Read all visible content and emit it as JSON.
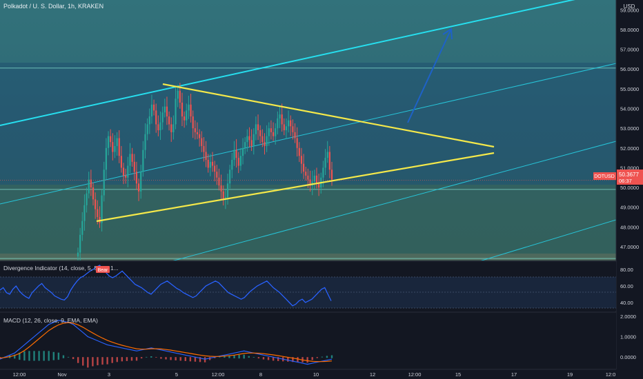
{
  "header": {
    "symbol_title": "Polkadot / U. S. Dollar, 1h, KRAKEN",
    "currency": "USD"
  },
  "colors": {
    "bg": "#131722",
    "candle_up": "#26a69a",
    "candle_down": "#ef5350",
    "channel_line": "#26c6da",
    "triangle": "#f5e94a",
    "arrow": "#1e62c8",
    "price_tag": "#ef5350",
    "rsi_line": "#2962ff",
    "macd_line": "#2962ff",
    "signal_line": "#ff6d00"
  },
  "chart_data": [
    {
      "type": "candlestick",
      "name": "price",
      "ylim": [
        46.3,
        59.5
      ],
      "yticks": [
        47,
        48,
        49,
        50,
        51,
        52,
        53,
        54,
        55,
        56,
        57,
        58,
        59
      ],
      "ytick_labels": [
        "47.0000",
        "48.0000",
        "49.0000",
        "50.0000",
        "51.0000",
        "52.0000",
        "53.0000",
        "54.0000",
        "55.0000",
        "56.0000",
        "57.0000",
        "58.0000",
        "59.0000"
      ],
      "last_price": 50.3677,
      "last_price_label": "50.3677",
      "symbol_tag": "DOTUSD",
      "countdown": "06:37",
      "horizontal_levels": [
        56.05,
        49.9,
        46.4
      ],
      "closes": [
        46.7,
        47.6,
        48.3,
        49.1,
        49.7,
        50.4,
        50.0,
        49.4,
        48.9,
        48.5,
        48.2,
        49.6,
        50.9,
        52.0,
        52.6,
        52.3,
        51.8,
        52.1,
        52.5,
        51.6,
        51.0,
        50.6,
        50.5,
        51.1,
        51.7,
        51.3,
        50.8,
        50.2,
        49.8,
        50.8,
        51.9,
        52.7,
        53.2,
        53.6,
        54.2,
        53.9,
        53.2,
        52.9,
        53.3,
        53.8,
        54.1,
        53.6,
        53.2,
        52.8,
        53.2,
        54.5,
        54.9,
        54.3,
        53.6,
        53.4,
        53.9,
        54.2,
        53.6,
        53.0,
        52.8,
        52.7,
        52.5,
        52.1,
        51.8,
        51.4,
        51.0,
        51.3,
        51.1,
        50.8,
        50.5,
        50.1,
        49.8,
        49.4,
        49.5,
        50.2,
        50.9,
        51.4,
        51.9,
        51.5,
        51.1,
        51.6,
        52.0,
        52.3,
        52.6,
        52.4,
        52.1,
        52.7,
        53.2,
        52.9,
        52.6,
        52.3,
        52.1,
        52.6,
        53.0,
        52.8,
        52.6,
        53.0,
        53.5,
        53.7,
        53.2,
        52.9,
        53.1,
        53.4,
        53.1,
        52.8,
        52.5,
        52.0,
        51.6,
        51.2,
        50.8,
        50.6,
        50.4,
        50.1,
        50.3,
        50.6,
        50.2,
        50.0,
        50.5,
        51.0,
        51.5,
        51.8,
        50.9,
        50.4
      ]
    },
    {
      "type": "line",
      "name": "Divergence Indicator",
      "title": "Divergence Indicator (14, close, 5, 5, 60, 1...",
      "signal_label": "Bear",
      "ylim": [
        30,
        90
      ],
      "yticks": [
        40,
        60,
        80
      ],
      "ytick_labels": [
        "40.00",
        "60.00",
        "80.00"
      ],
      "band": [
        40,
        70
      ],
      "mid": 50,
      "values": [
        55,
        58,
        52,
        50,
        56,
        60,
        54,
        50,
        47,
        45,
        52,
        56,
        60,
        63,
        58,
        55,
        52,
        48,
        46,
        44,
        43,
        47,
        55,
        61,
        66,
        70,
        72,
        75,
        78,
        80,
        83,
        85,
        80,
        76,
        72,
        70,
        72,
        75,
        78,
        74,
        70,
        66,
        62,
        60,
        58,
        55,
        52,
        50,
        54,
        58,
        62,
        64,
        66,
        63,
        60,
        57,
        55,
        52,
        50,
        48,
        46,
        48,
        52,
        56,
        60,
        62,
        64,
        66,
        64,
        60,
        56,
        52,
        50,
        48,
        46,
        44,
        46,
        50,
        54,
        57,
        60,
        62,
        64,
        66,
        62,
        58,
        55,
        52,
        48,
        44,
        40,
        36,
        38,
        42,
        44,
        40,
        42,
        44,
        48,
        52,
        56,
        58,
        50,
        42
      ]
    },
    {
      "type": "line",
      "name": "MACD",
      "title": "MACD (12, 26, close, 9, EMA, EMA)",
      "ylim": [
        -0.6,
        2.2
      ],
      "yticks": [
        0,
        1,
        2
      ],
      "ytick_labels": [
        "0.0000",
        "1.0000",
        "2.0000"
      ],
      "macd": [
        -0.1,
        0.0,
        0.1,
        0.2,
        0.4,
        0.6,
        0.8,
        1.0,
        1.2,
        1.4,
        1.6,
        1.7,
        1.8,
        1.75,
        1.7,
        1.6,
        1.4,
        1.2,
        1.0,
        0.9,
        0.8,
        0.7,
        0.6,
        0.55,
        0.5,
        0.45,
        0.4,
        0.35,
        0.3,
        0.35,
        0.4,
        0.45,
        0.4,
        0.35,
        0.3,
        0.25,
        0.2,
        0.15,
        0.1,
        0.05,
        0.0,
        -0.05,
        -0.1,
        -0.05,
        0.0,
        0.05,
        0.1,
        0.15,
        0.2,
        0.25,
        0.3,
        0.25,
        0.2,
        0.15,
        0.1,
        0.05,
        0.0,
        -0.05,
        -0.1,
        -0.15,
        -0.2,
        -0.25,
        -0.3,
        -0.35,
        -0.3,
        -0.25,
        -0.2,
        -0.15,
        -0.1
      ],
      "signal": [
        -0.05,
        -0.02,
        0.02,
        0.08,
        0.18,
        0.32,
        0.5,
        0.7,
        0.9,
        1.1,
        1.3,
        1.45,
        1.58,
        1.66,
        1.69,
        1.66,
        1.58,
        1.46,
        1.32,
        1.18,
        1.05,
        0.93,
        0.82,
        0.73,
        0.65,
        0.58,
        0.52,
        0.46,
        0.41,
        0.39,
        0.39,
        0.41,
        0.41,
        0.4,
        0.37,
        0.34,
        0.3,
        0.26,
        0.22,
        0.18,
        0.14,
        0.1,
        0.06,
        0.04,
        0.03,
        0.03,
        0.05,
        0.07,
        0.1,
        0.14,
        0.18,
        0.2,
        0.2,
        0.19,
        0.17,
        0.14,
        0.11,
        0.07,
        0.03,
        -0.01,
        -0.05,
        -0.09,
        -0.14,
        -0.18,
        -0.21,
        -0.22,
        -0.22,
        -0.21,
        -0.19
      ]
    }
  ],
  "x_axis": {
    "labels": [
      "12:00",
      "Nov",
      "3",
      "5",
      "12:00",
      "8",
      "10",
      "12",
      "12:00",
      "15",
      "17",
      "19",
      "12:0"
    ]
  }
}
